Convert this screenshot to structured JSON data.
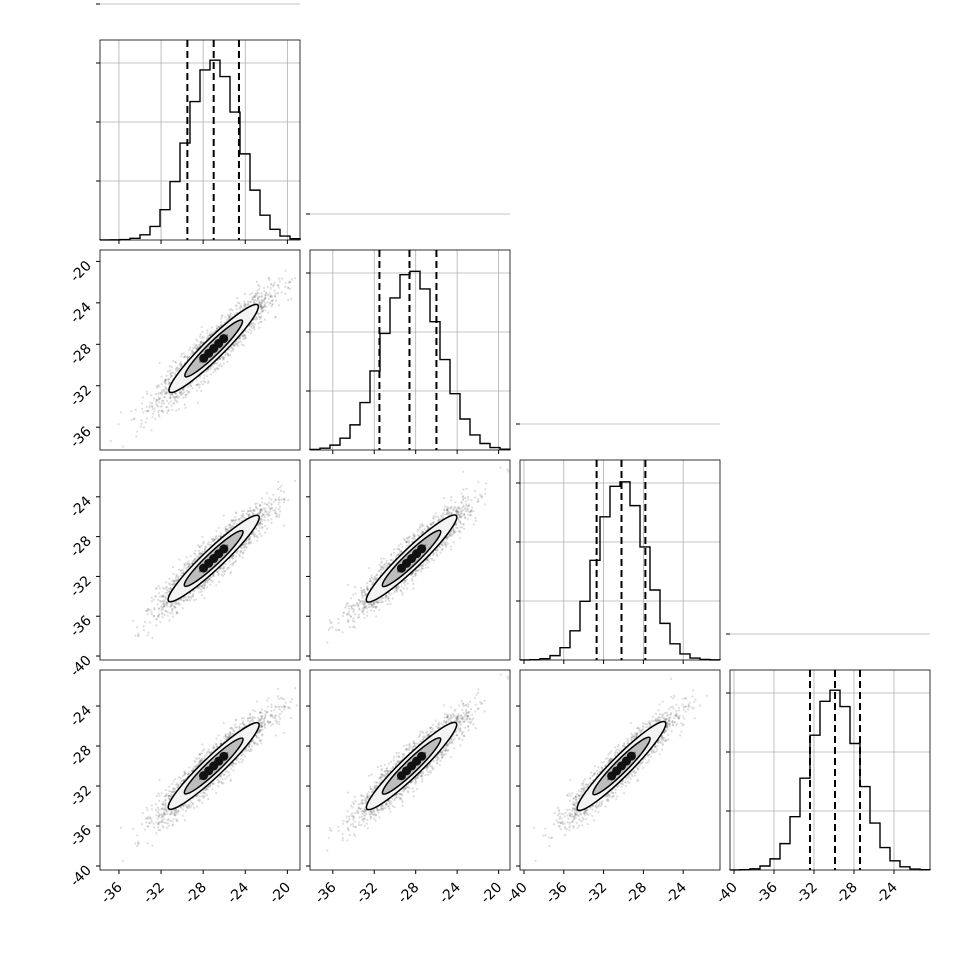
{
  "chart_data": {
    "type": "corner",
    "title": "",
    "parameters": [
      "",
      "",
      "",
      ""
    ],
    "ticks": {
      "p1": [
        "-36",
        "-32",
        "-28",
        "-24",
        "-20"
      ],
      "p2_y": [
        "-20",
        "-24",
        "-28",
        "-32",
        "-36"
      ],
      "p2_x": [
        "-36",
        "-32",
        "-28",
        "-24",
        "-20"
      ],
      "p3_y": [
        "-24",
        "-28",
        "-32",
        "-36",
        "-40"
      ],
      "p3_x": [
        "-40",
        "-36",
        "-32",
        "-28",
        "-24"
      ],
      "p4_y": [
        "-24",
        "-28",
        "-32",
        "-36",
        "-40"
      ],
      "p4_x": [
        "-40",
        "-36",
        "-32",
        "-28",
        "-24"
      ]
    },
    "diagonal_histograms": [
      {
        "param": 1,
        "range": [
          -37.8,
          -18.8
        ],
        "quantiles": [
          -29.5,
          -27.0,
          -24.6
        ],
        "peak": -27.0
      },
      {
        "param": 2,
        "range": [
          -38.2,
          -18.9
        ],
        "quantiles": [
          -31.5,
          -28.6,
          -26.0
        ],
        "peak": -28.4
      },
      {
        "param": 3,
        "range": [
          -40.4,
          -20.3
        ],
        "quantiles": [
          -32.7,
          -30.2,
          -27.8
        ],
        "peak": -30.2
      },
      {
        "param": 4,
        "range": [
          -40.4,
          -20.4
        ],
        "quantiles": [
          -32.4,
          -29.9,
          -27.4
        ],
        "peak": -30.0
      }
    ],
    "pair_panels": [
      {
        "x": 1,
        "y": 2,
        "correlation": "strong positive"
      },
      {
        "x": 1,
        "y": 3,
        "correlation": "strong positive"
      },
      {
        "x": 2,
        "y": 3,
        "correlation": "strong positive"
      },
      {
        "x": 1,
        "y": 4,
        "correlation": "strong positive"
      },
      {
        "x": 2,
        "y": 4,
        "correlation": "strong positive"
      },
      {
        "x": 3,
        "y": 4,
        "correlation": "strong positive"
      }
    ],
    "grid": true,
    "colors": {
      "line": "#000000",
      "grid": "#b0b0b0",
      "points": "#666666"
    }
  }
}
